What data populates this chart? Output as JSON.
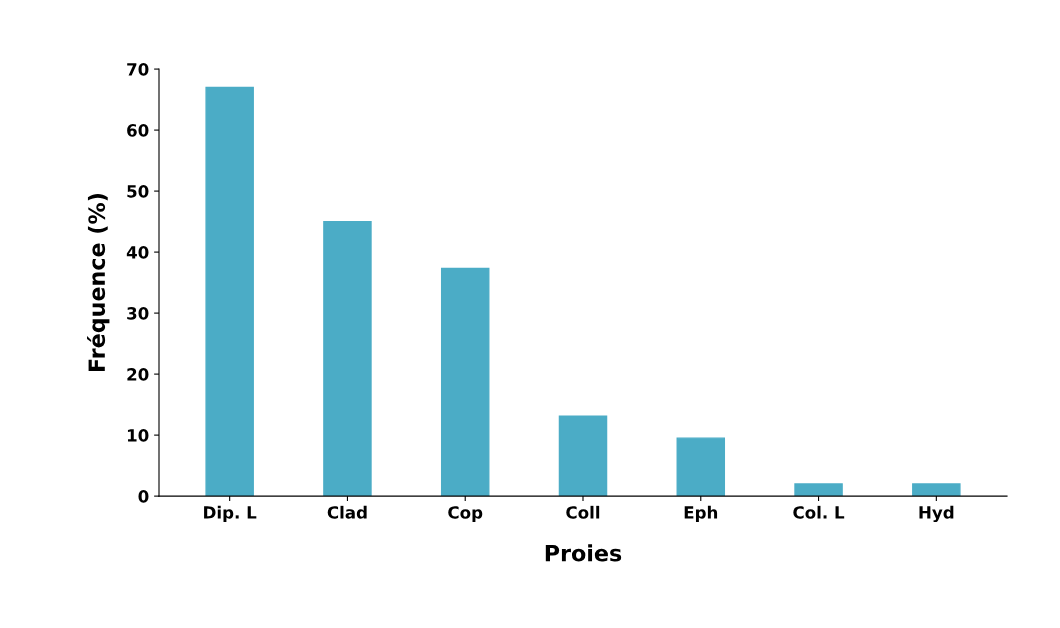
{
  "chart_data": {
    "type": "bar",
    "xlabel": "Proies",
    "ylabel": "Fréquence (%)",
    "categories": [
      "Dip. L",
      "Clad",
      "Cop",
      "Coll",
      "Eph",
      "Col. L",
      "Hyd"
    ],
    "values": [
      67,
      45,
      37.3,
      13.1,
      9.5,
      2,
      2
    ],
    "color": "#4bacc6",
    "ylim": [
      0,
      70
    ],
    "yticks": [
      0,
      10,
      20,
      30,
      40,
      50,
      60,
      70
    ],
    "grid": false
  }
}
